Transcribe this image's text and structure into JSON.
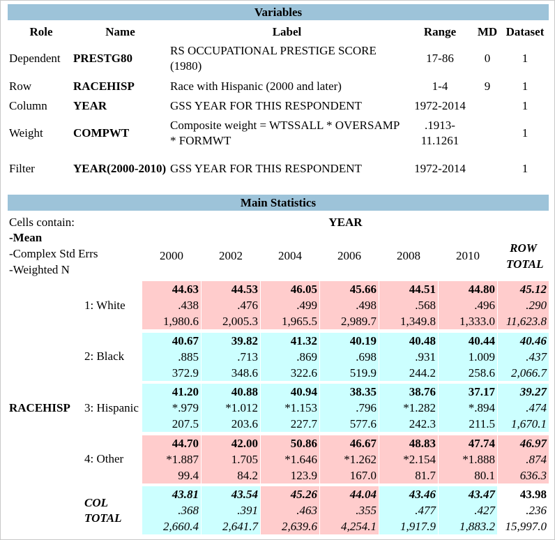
{
  "variables": {
    "title": "Variables",
    "headers": [
      "Role",
      "Name",
      "Label",
      "Range",
      "MD",
      "Dataset"
    ],
    "rows": [
      [
        "Dependent",
        "PRESTG80",
        "RS OCCUPATIONAL PRESTIGE SCORE (1980)",
        "17-86",
        "0",
        "1"
      ],
      [
        "Row",
        "RACEHISP",
        "Race with Hispanic (2000 and later)",
        "1-4",
        "9",
        "1"
      ],
      [
        "Column",
        "YEAR",
        "GSS YEAR FOR THIS RESPONDENT",
        "1972-2014",
        "",
        "1"
      ],
      [
        "Weight",
        "COMPWT",
        "Composite weight = WTSSALL * OVERSAMP * FORMWT",
        ".1913-11.1261",
        "",
        "1"
      ],
      [
        "Filter",
        "YEAR(2000-2010)",
        "GSS YEAR FOR THIS RESPONDENT",
        "1972-2014",
        "",
        "1"
      ]
    ]
  },
  "main": {
    "title": "Main Statistics",
    "cells_contain": "Cells contain:",
    "cell_items": [
      "-Mean",
      "-Complex Std Errs",
      "-Weighted N"
    ],
    "column_var": "YEAR",
    "row_var": "RACEHISP",
    "columns": [
      "2000",
      "2002",
      "2004",
      "2006",
      "2008",
      "2010",
      "ROW TOTAL"
    ],
    "rows": [
      {
        "label": "1: White",
        "colors": [
          "#ffcccc",
          "#ffcccc",
          "#ffcccc",
          "#ffcccc",
          "#ffcccc",
          "#ffcccc",
          "#ffcccc"
        ],
        "cells": [
          [
            "44.63",
            ".438",
            "1,980.6"
          ],
          [
            "44.53",
            ".476",
            "2,005.3"
          ],
          [
            "46.05",
            ".499",
            "1,965.5"
          ],
          [
            "45.66",
            ".498",
            "2,989.7"
          ],
          [
            "44.51",
            ".568",
            "1,349.8"
          ],
          [
            "44.80",
            ".496",
            "1,333.0"
          ],
          [
            "45.12",
            ".290",
            "11,623.8"
          ]
        ]
      },
      {
        "label": "2: Black",
        "colors": [
          "#ccffff",
          "#ccffff",
          "#ccffff",
          "#ccffff",
          "#ccffff",
          "#ccffff",
          "#ccffff"
        ],
        "cells": [
          [
            "40.67",
            ".885",
            "372.9"
          ],
          [
            "39.82",
            ".713",
            "348.6"
          ],
          [
            "41.32",
            ".869",
            "322.6"
          ],
          [
            "40.19",
            ".698",
            "519.9"
          ],
          [
            "40.48",
            ".931",
            "244.2"
          ],
          [
            "40.44",
            "1.009",
            "258.6"
          ],
          [
            "40.46",
            ".437",
            "2,066.7"
          ]
        ]
      },
      {
        "label": "3: Hispanic",
        "colors": [
          "#ccffff",
          "#ccffff",
          "#ccffff",
          "#ccffff",
          "#ccffff",
          "#ccffff",
          "#ccffff"
        ],
        "cells": [
          [
            "41.20",
            "*.979",
            "207.5"
          ],
          [
            "40.88",
            "*1.012",
            "203.6"
          ],
          [
            "40.94",
            "*1.153",
            "227.7"
          ],
          [
            "38.35",
            ".796",
            "577.6"
          ],
          [
            "38.76",
            "*1.282",
            "242.3"
          ],
          [
            "37.17",
            "*.894",
            "211.5"
          ],
          [
            "39.27",
            ".474",
            "1,670.1"
          ]
        ]
      },
      {
        "label": "4: Other",
        "colors": [
          "#ffcccc",
          "#ffcccc",
          "#ffcccc",
          "#ffcccc",
          "#ffcccc",
          "#ffcccc",
          "#ffcccc"
        ],
        "cells": [
          [
            "44.70",
            "*1.887",
            "99.4"
          ],
          [
            "42.00",
            "1.705",
            "84.2"
          ],
          [
            "50.86",
            "*1.646",
            "123.9"
          ],
          [
            "46.67",
            "*1.262",
            "167.0"
          ],
          [
            "48.83",
            "*2.154",
            "81.7"
          ],
          [
            "47.74",
            "*1.888",
            "80.1"
          ],
          [
            "46.97",
            ".874",
            "636.3"
          ]
        ]
      }
    ],
    "col_total": {
      "label": "COL TOTAL",
      "colors": [
        "#ccffff",
        "#ccffff",
        "#ffcccc",
        "#ffcccc",
        "#ccffff",
        "#ccffff",
        "#ffffff"
      ],
      "cells": [
        [
          "43.81",
          ".368",
          "2,660.4"
        ],
        [
          "43.54",
          ".391",
          "2,641.7"
        ],
        [
          "45.26",
          ".463",
          "2,639.6"
        ],
        [
          "44.04",
          ".355",
          "4,254.1"
        ],
        [
          "43.46",
          ".477",
          "1,917.9"
        ],
        [
          "43.47",
          ".427",
          "1,883.2"
        ],
        [
          "43.98",
          ".236",
          "15,997.0"
        ]
      ]
    }
  }
}
